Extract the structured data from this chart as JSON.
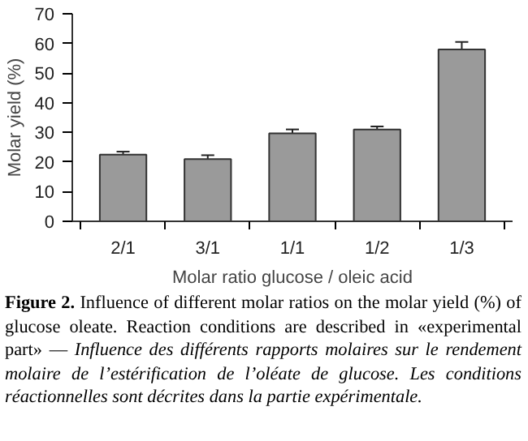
{
  "chart_data": {
    "type": "bar",
    "xlabel": "Molar ratio glucose / oleic acid",
    "ylabel": "Molar yield (%)",
    "categories": [
      "2/1",
      "3/1",
      "1/1",
      "1/2",
      "1/3"
    ],
    "values": [
      22.5,
      21,
      29.7,
      31,
      58
    ],
    "errors": [
      1,
      1.3,
      1.3,
      1,
      2.5
    ],
    "color": "#9a9a9a",
    "ylim": [
      0,
      70
    ],
    "yticks": [
      0,
      10,
      20,
      30,
      40,
      50,
      60,
      70
    ],
    "grid": false,
    "annotations": [
      "Figure 2.",
      "Influence of different molar ratios on the molar yield (%) of glucose oleate. Reaction conditions are described in «experimental part» —",
      "Influence des différents rapports molaires sur le rendement molaire de l’estérification de l’oléate de glucose. Les conditions réactionnelles sont décrites dans la partie expérimentale."
    ]
  }
}
